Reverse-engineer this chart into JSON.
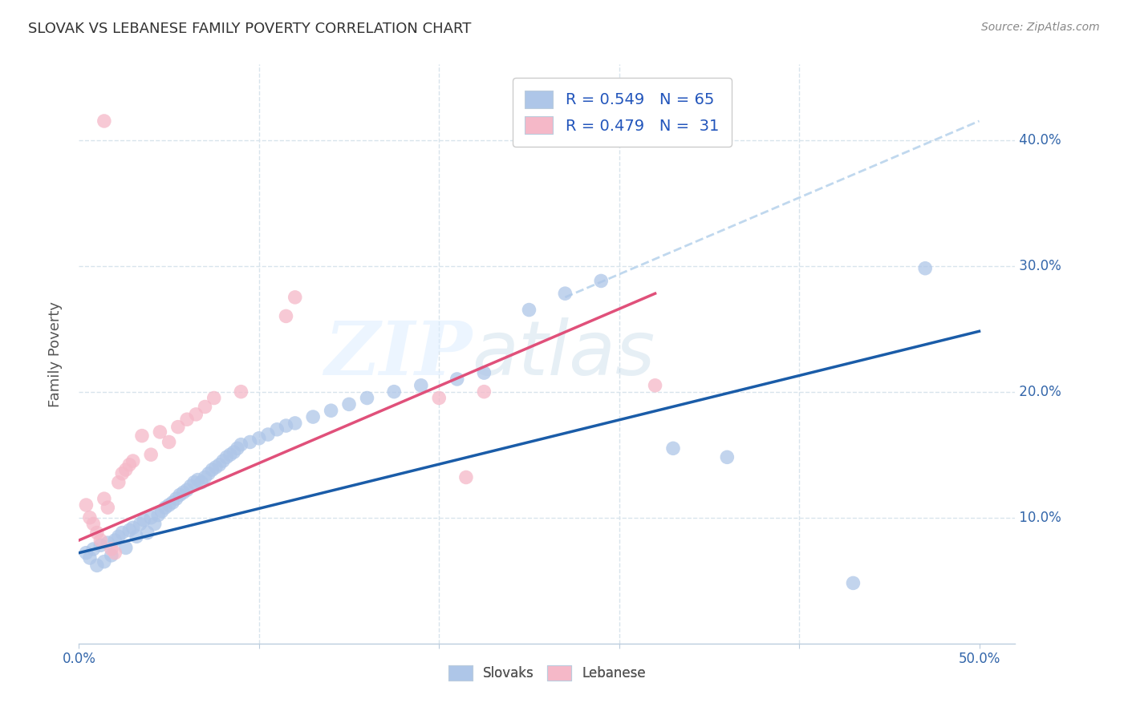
{
  "title": "SLOVAK VS LEBANESE FAMILY POVERTY CORRELATION CHART",
  "source": "Source: ZipAtlas.com",
  "ylabel": "Family Poverty",
  "xlim": [
    0.0,
    0.52
  ],
  "ylim": [
    0.0,
    0.46
  ],
  "ytick_positions": [
    0.1,
    0.2,
    0.3,
    0.4
  ],
  "ytick_labels": [
    "10.0%",
    "20.0%",
    "30.0%",
    "40.0%"
  ],
  "xtick_positions": [
    0.0,
    0.1,
    0.2,
    0.3,
    0.4,
    0.5
  ],
  "xtick_labels": [
    "0.0%",
    "",
    "",
    "",
    "",
    "50.0%"
  ],
  "watermark_zip": "ZIP",
  "watermark_atlas": "atlas",
  "slovak_color": "#aec6e8",
  "lebanese_color": "#f5b8c8",
  "slovak_line_color": "#1a5ca8",
  "lebanese_line_color": "#e0507a",
  "dashed_line_color": "#c0d8ee",
  "background_color": "#ffffff",
  "grid_color": "#d8e4ec",
  "legend_sk_label": "R = 0.549   N = 65",
  "legend_lb_label": "R = 0.479   N =  31",
  "legend_label_color": "#2255bb",
  "slovaks_scatter": [
    [
      0.004,
      0.072
    ],
    [
      0.006,
      0.068
    ],
    [
      0.008,
      0.075
    ],
    [
      0.01,
      0.062
    ],
    [
      0.012,
      0.078
    ],
    [
      0.014,
      0.065
    ],
    [
      0.016,
      0.08
    ],
    [
      0.018,
      0.07
    ],
    [
      0.02,
      0.082
    ],
    [
      0.022,
      0.085
    ],
    [
      0.024,
      0.088
    ],
    [
      0.026,
      0.076
    ],
    [
      0.028,
      0.09
    ],
    [
      0.03,
      0.092
    ],
    [
      0.032,
      0.085
    ],
    [
      0.034,
      0.095
    ],
    [
      0.036,
      0.098
    ],
    [
      0.038,
      0.088
    ],
    [
      0.04,
      0.1
    ],
    [
      0.042,
      0.095
    ],
    [
      0.044,
      0.102
    ],
    [
      0.046,
      0.105
    ],
    [
      0.048,
      0.108
    ],
    [
      0.05,
      0.11
    ],
    [
      0.052,
      0.112
    ],
    [
      0.054,
      0.115
    ],
    [
      0.056,
      0.118
    ],
    [
      0.058,
      0.12
    ],
    [
      0.06,
      0.122
    ],
    [
      0.062,
      0.125
    ],
    [
      0.064,
      0.128
    ],
    [
      0.066,
      0.13
    ],
    [
      0.068,
      0.128
    ],
    [
      0.07,
      0.132
    ],
    [
      0.072,
      0.135
    ],
    [
      0.074,
      0.138
    ],
    [
      0.076,
      0.14
    ],
    [
      0.078,
      0.142
    ],
    [
      0.08,
      0.145
    ],
    [
      0.082,
      0.148
    ],
    [
      0.084,
      0.15
    ],
    [
      0.086,
      0.152
    ],
    [
      0.088,
      0.155
    ],
    [
      0.09,
      0.158
    ],
    [
      0.095,
      0.16
    ],
    [
      0.1,
      0.163
    ],
    [
      0.105,
      0.166
    ],
    [
      0.11,
      0.17
    ],
    [
      0.115,
      0.173
    ],
    [
      0.12,
      0.175
    ],
    [
      0.13,
      0.18
    ],
    [
      0.14,
      0.185
    ],
    [
      0.15,
      0.19
    ],
    [
      0.16,
      0.195
    ],
    [
      0.175,
      0.2
    ],
    [
      0.19,
      0.205
    ],
    [
      0.21,
      0.21
    ],
    [
      0.225,
      0.215
    ],
    [
      0.25,
      0.265
    ],
    [
      0.27,
      0.278
    ],
    [
      0.29,
      0.288
    ],
    [
      0.33,
      0.155
    ],
    [
      0.36,
      0.148
    ],
    [
      0.43,
      0.048
    ],
    [
      0.47,
      0.298
    ]
  ],
  "lebanese_scatter": [
    [
      0.004,
      0.11
    ],
    [
      0.006,
      0.1
    ],
    [
      0.008,
      0.095
    ],
    [
      0.01,
      0.088
    ],
    [
      0.012,
      0.082
    ],
    [
      0.014,
      0.115
    ],
    [
      0.016,
      0.108
    ],
    [
      0.018,
      0.075
    ],
    [
      0.02,
      0.072
    ],
    [
      0.022,
      0.128
    ],
    [
      0.024,
      0.135
    ],
    [
      0.026,
      0.138
    ],
    [
      0.028,
      0.142
    ],
    [
      0.03,
      0.145
    ],
    [
      0.035,
      0.165
    ],
    [
      0.04,
      0.15
    ],
    [
      0.045,
      0.168
    ],
    [
      0.05,
      0.16
    ],
    [
      0.055,
      0.172
    ],
    [
      0.06,
      0.178
    ],
    [
      0.065,
      0.182
    ],
    [
      0.07,
      0.188
    ],
    [
      0.075,
      0.195
    ],
    [
      0.09,
      0.2
    ],
    [
      0.115,
      0.26
    ],
    [
      0.12,
      0.275
    ],
    [
      0.2,
      0.195
    ],
    [
      0.215,
      0.132
    ],
    [
      0.225,
      0.2
    ],
    [
      0.32,
      0.205
    ],
    [
      0.014,
      0.415
    ]
  ],
  "slovak_line": {
    "x0": 0.0,
    "y0": 0.072,
    "x1": 0.5,
    "y1": 0.248
  },
  "lebanese_line": {
    "x0": 0.0,
    "y0": 0.082,
    "x1": 0.32,
    "y1": 0.278
  },
  "dashed_line": {
    "x0": 0.27,
    "y0": 0.275,
    "x1": 0.5,
    "y1": 0.415
  }
}
